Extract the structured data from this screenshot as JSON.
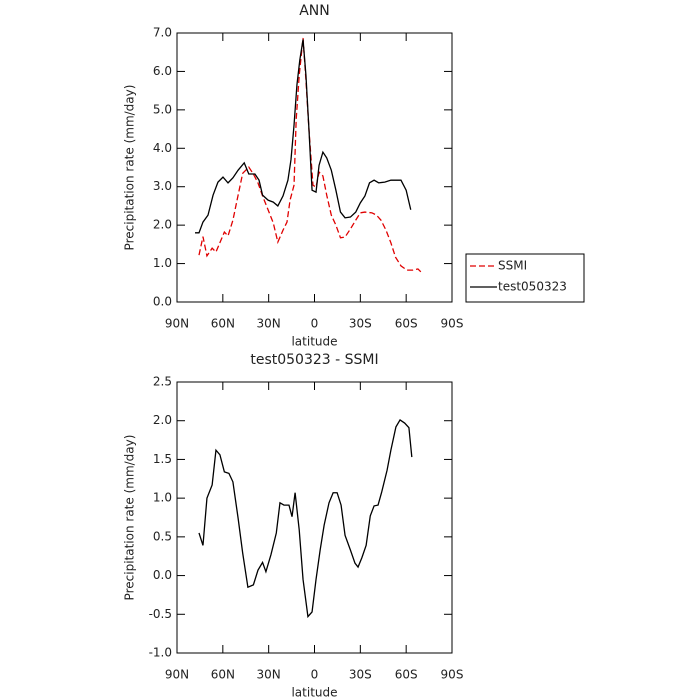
{
  "chart_data": [
    {
      "type": "line",
      "title": "ANN",
      "xlabel": "latitude",
      "ylabel": "Precipitation rate (mm/day)",
      "xlim": [
        90,
        -90
      ],
      "xticks": [
        {
          "value": 90,
          "label": "90N"
        },
        {
          "value": 60,
          "label": "60N"
        },
        {
          "value": 30,
          "label": "30N"
        },
        0,
        {
          "value": -30,
          "label": "30S"
        },
        {
          "value": -60,
          "label": "60S"
        },
        {
          "value": -90,
          "label": "90S"
        }
      ],
      "ylim": [
        0,
        7
      ],
      "yticks": [
        {
          "value": 0,
          "label": "0.0"
        },
        {
          "value": 1,
          "label": "1.0"
        },
        {
          "value": 2,
          "label": "2.0"
        },
        {
          "value": 3,
          "label": "3.0"
        },
        {
          "value": 4,
          "label": "4.0"
        },
        {
          "value": 5,
          "label": "5.0"
        },
        {
          "value": 6,
          "label": "6.0"
        },
        {
          "value": 7,
          "label": "7.0"
        }
      ],
      "legend": "right",
      "series": [
        {
          "name": "SSMI",
          "color": "#e00000",
          "dash": true,
          "x": [
            75.6,
            73,
            70.4,
            67,
            64.5,
            59,
            56.6,
            53.4,
            50,
            47,
            43,
            40,
            37,
            34,
            30.4,
            27,
            24,
            20.6,
            18,
            16,
            13.4,
            12,
            10,
            7.5,
            5.6,
            3.6,
            1,
            -1,
            -3,
            -5.5,
            -8,
            -11,
            -14,
            -17,
            -20,
            -23.5,
            -27,
            -30,
            -33,
            -37.6,
            -40.6,
            -43.5,
            -46.8,
            -50,
            -53,
            -56.6,
            -60.5,
            -64.5,
            -67.7,
            -71
          ],
          "values": [
            1.22,
            1.7,
            1.2,
            1.4,
            1.3,
            1.82,
            1.72,
            2.13,
            2.78,
            3.35,
            3.51,
            3.33,
            3.1,
            2.76,
            2.4,
            2.06,
            1.56,
            1.87,
            2.08,
            2.65,
            3.04,
            4.74,
            5.9,
            6.87,
            5.77,
            4.47,
            3.04,
            2.99,
            3.38,
            3.28,
            2.78,
            2.26,
            2.0,
            1.67,
            1.69,
            1.9,
            2.13,
            2.32,
            2.34,
            2.32,
            2.26,
            2.13,
            1.87,
            1.54,
            1.17,
            0.94,
            0.83,
            0.83,
            0.86,
            0.73
          ]
        },
        {
          "name": "test050323",
          "color": "#000000",
          "dash": false,
          "x": [
            78.2,
            75.6,
            73,
            69.7,
            66.4,
            63.2,
            59.9,
            56.6,
            53.4,
            50,
            46,
            43,
            39,
            36.3,
            34,
            30.4,
            27,
            24,
            20.6,
            17.4,
            15.4,
            13.4,
            11.5,
            9.6,
            7.5,
            5.6,
            3.6,
            1.6,
            -1,
            -3,
            -5.5,
            -8,
            -11,
            -14,
            -17,
            -20,
            -23.5,
            -27,
            -30,
            -33,
            -36,
            -39,
            -42,
            -46,
            -50,
            -53,
            -56.6,
            -60,
            -63
          ],
          "values": [
            1.8,
            1.8,
            2.08,
            2.26,
            2.78,
            3.12,
            3.25,
            3.1,
            3.23,
            3.43,
            3.62,
            3.33,
            3.33,
            3.17,
            2.78,
            2.65,
            2.6,
            2.5,
            2.76,
            3.17,
            3.7,
            4.6,
            5.65,
            6.3,
            6.83,
            5.9,
            4.47,
            2.91,
            2.86,
            3.56,
            3.9,
            3.75,
            3.43,
            2.91,
            2.34,
            2.19,
            2.21,
            2.34,
            2.58,
            2.76,
            3.1,
            3.17,
            3.1,
            3.12,
            3.17,
            3.17,
            3.17,
            2.91,
            2.4
          ]
        }
      ]
    },
    {
      "type": "line",
      "title": "test050323 - SSMI",
      "xlabel": "latitude",
      "ylabel": "Precipitation rate (mm/day)",
      "xlim": [
        90,
        -90
      ],
      "xticks": [
        {
          "value": 90,
          "label": "90N"
        },
        {
          "value": 60,
          "label": "60N"
        },
        {
          "value": 30,
          "label": "30N"
        },
        0,
        {
          "value": -30,
          "label": "30S"
        },
        {
          "value": -60,
          "label": "60S"
        },
        {
          "value": -90,
          "label": "90S"
        }
      ],
      "ylim": [
        -1,
        2.5
      ],
      "yticks": [
        {
          "value": -1,
          "label": "-1.0"
        },
        {
          "value": -0.5,
          "label": "-0.5"
        },
        {
          "value": 0,
          "label": "0.0"
        },
        {
          "value": 0.5,
          "label": "0.5"
        },
        {
          "value": 1,
          "label": "1.0"
        },
        {
          "value": 1.5,
          "label": "1.5"
        },
        {
          "value": 2,
          "label": "2.0"
        },
        {
          "value": 2.5,
          "label": "2.5"
        }
      ],
      "series": [
        {
          "color": "#000000",
          "dash": false,
          "x": [
            75.6,
            73,
            70.4,
            67,
            64.5,
            61.9,
            59,
            56,
            53.4,
            50,
            47,
            43.6,
            40,
            37,
            34,
            31.8,
            28.5,
            25,
            22.6,
            20,
            16.7,
            14.7,
            12.7,
            10,
            7.5,
            4.3,
            1.6,
            -1,
            -3.7,
            -6.3,
            -9.5,
            -12.2,
            -14.8,
            -17.4,
            -20,
            -23.5,
            -26.5,
            -28.5,
            -31,
            -33.8,
            -36.5,
            -39,
            -41.6,
            -44,
            -47.5,
            -50,
            -53.3,
            -56,
            -59,
            -61.8,
            -63.7
          ],
          "values": [
            0.55,
            0.39,
            1.0,
            1.17,
            1.62,
            1.56,
            1.34,
            1.32,
            1.21,
            0.74,
            0.29,
            -0.15,
            -0.12,
            0.07,
            0.17,
            0.05,
            0.27,
            0.55,
            0.94,
            0.91,
            0.91,
            0.76,
            1.07,
            0.59,
            -0.05,
            -0.53,
            -0.47,
            -0.05,
            0.33,
            0.65,
            0.94,
            1.07,
            1.07,
            0.91,
            0.52,
            0.33,
            0.16,
            0.11,
            0.23,
            0.39,
            0.77,
            0.9,
            0.91,
            1.08,
            1.36,
            1.62,
            1.92,
            2.01,
            1.97,
            1.91,
            1.53
          ]
        }
      ]
    }
  ]
}
